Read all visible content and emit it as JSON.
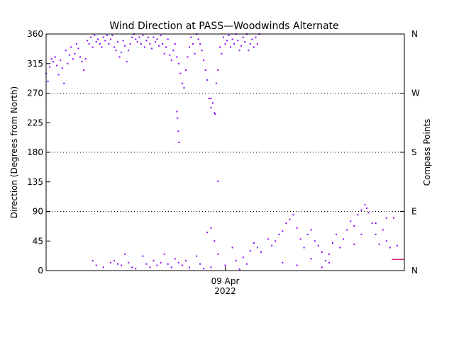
{
  "chart_data": {
    "type": "scatter",
    "title": "Wind Direction at PASS—Woodwinds Alternate",
    "ylabel": "Direction (Degrees from North)",
    "ylabel_right": "Compass Points",
    "xlabel": "",
    "ylim": [
      0,
      360
    ],
    "yticks": [
      0,
      45,
      90,
      135,
      180,
      225,
      270,
      315,
      360
    ],
    "right_ticks": [
      {
        "value": 0,
        "label": "N"
      },
      {
        "value": 90,
        "label": "E"
      },
      {
        "value": 180,
        "label": "S"
      },
      {
        "value": 270,
        "label": "W"
      },
      {
        "value": 360,
        "label": "N"
      }
    ],
    "gridlines_y": [
      90,
      180,
      270
    ],
    "xlim": [
      0,
      1
    ],
    "xtick": {
      "x": 0.5,
      "label_line1": "09 Apr",
      "label_line2": "2022"
    },
    "marker_color": "#8800ff",
    "segment_color": "#cc0066",
    "series": [
      {
        "points": [
          [
            0.0,
            300
          ],
          [
            0.005,
            288
          ],
          [
            0.01,
            310
          ],
          [
            0.015,
            322
          ],
          [
            0.02,
            318
          ],
          [
            0.025,
            325
          ],
          [
            0.03,
            312
          ],
          [
            0.035,
            298
          ],
          [
            0.04,
            320
          ],
          [
            0.045,
            308
          ],
          [
            0.05,
            285
          ],
          [
            0.055,
            335
          ],
          [
            0.06,
            315
          ],
          [
            0.065,
            328
          ],
          [
            0.07,
            340
          ],
          [
            0.075,
            322
          ],
          [
            0.08,
            330
          ],
          [
            0.085,
            345
          ],
          [
            0.09,
            338
          ],
          [
            0.095,
            325
          ],
          [
            0.1,
            318
          ],
          [
            0.105,
            305
          ],
          [
            0.11,
            322
          ],
          [
            0.115,
            350
          ],
          [
            0.12,
            345
          ],
          [
            0.125,
            355
          ],
          [
            0.13,
            340
          ],
          [
            0.135,
            358
          ],
          [
            0.14,
            348
          ],
          [
            0.145,
            352
          ],
          [
            0.15,
            345
          ],
          [
            0.155,
            340
          ],
          [
            0.16,
            355
          ],
          [
            0.165,
            350
          ],
          [
            0.17,
            358
          ],
          [
            0.175,
            345
          ],
          [
            0.18,
            352
          ],
          [
            0.185,
            358
          ],
          [
            0.19,
            340
          ],
          [
            0.195,
            335
          ],
          [
            0.2,
            348
          ],
          [
            0.205,
            325
          ],
          [
            0.21,
            332
          ],
          [
            0.215,
            350
          ],
          [
            0.22,
            342
          ],
          [
            0.225,
            318
          ],
          [
            0.23,
            335
          ],
          [
            0.235,
            345
          ],
          [
            0.24,
            355
          ],
          [
            0.245,
            360
          ],
          [
            0.25,
            352
          ],
          [
            0.255,
            348
          ],
          [
            0.26,
            355
          ],
          [
            0.265,
            345
          ],
          [
            0.27,
            358
          ],
          [
            0.275,
            340
          ],
          [
            0.28,
            350
          ],
          [
            0.285,
            355
          ],
          [
            0.29,
            345
          ],
          [
            0.295,
            338
          ],
          [
            0.3,
            355
          ],
          [
            0.305,
            348
          ],
          [
            0.31,
            352
          ],
          [
            0.315,
            342
          ],
          [
            0.32,
            358
          ],
          [
            0.325,
            345
          ],
          [
            0.33,
            330
          ],
          [
            0.335,
            340
          ],
          [
            0.34,
            352
          ],
          [
            0.345,
            328
          ],
          [
            0.35,
            320
          ],
          [
            0.355,
            335
          ],
          [
            0.36,
            345
          ],
          [
            0.365,
            325
          ],
          [
            0.37,
            315
          ],
          [
            0.375,
            300
          ],
          [
            0.38,
            285
          ],
          [
            0.385,
            278
          ],
          [
            0.39,
            305
          ],
          [
            0.395,
            325
          ],
          [
            0.4,
            340
          ],
          [
            0.405,
            355
          ],
          [
            0.41,
            345
          ],
          [
            0.415,
            330
          ],
          [
            0.42,
            360
          ],
          [
            0.425,
            352
          ],
          [
            0.43,
            345
          ],
          [
            0.435,
            335
          ],
          [
            0.44,
            320
          ],
          [
            0.445,
            305
          ],
          [
            0.45,
            290
          ],
          [
            0.455,
            262
          ],
          [
            0.46,
            248
          ],
          [
            0.465,
            255
          ],
          [
            0.47,
            240
          ],
          [
            0.475,
            285
          ],
          [
            0.48,
            305
          ],
          [
            0.485,
            340
          ],
          [
            0.49,
            330
          ],
          [
            0.495,
            355
          ],
          [
            0.5,
            345
          ],
          [
            0.505,
            350
          ],
          [
            0.51,
            358
          ],
          [
            0.515,
            340
          ],
          [
            0.52,
            352
          ],
          [
            0.525,
            345
          ],
          [
            0.53,
            360
          ],
          [
            0.535,
            350
          ],
          [
            0.54,
            335
          ],
          [
            0.545,
            342
          ],
          [
            0.55,
            355
          ],
          [
            0.555,
            348
          ],
          [
            0.56,
            360
          ],
          [
            0.565,
            335
          ],
          [
            0.57,
            345
          ],
          [
            0.575,
            352
          ],
          [
            0.58,
            340
          ],
          [
            0.585,
            355
          ],
          [
            0.59,
            345
          ],
          [
            0.595,
            360
          ],
          [
            0.365,
            242
          ],
          [
            0.367,
            232
          ],
          [
            0.369,
            212
          ],
          [
            0.371,
            195
          ],
          [
            0.46,
            262
          ],
          [
            0.472,
            238
          ],
          [
            0.48,
            136
          ],
          [
            0.13,
            15
          ],
          [
            0.14,
            8
          ],
          [
            0.16,
            5
          ],
          [
            0.18,
            12
          ],
          [
            0.19,
            15
          ],
          [
            0.2,
            10
          ],
          [
            0.21,
            8
          ],
          [
            0.22,
            25
          ],
          [
            0.23,
            12
          ],
          [
            0.24,
            5
          ],
          [
            0.25,
            3
          ],
          [
            0.27,
            22
          ],
          [
            0.28,
            10
          ],
          [
            0.29,
            5
          ],
          [
            0.3,
            15
          ],
          [
            0.31,
            8
          ],
          [
            0.32,
            12
          ],
          [
            0.33,
            25
          ],
          [
            0.34,
            10
          ],
          [
            0.35,
            5
          ],
          [
            0.36,
            18
          ],
          [
            0.37,
            12
          ],
          [
            0.38,
            8
          ],
          [
            0.39,
            15
          ],
          [
            0.4,
            5
          ],
          [
            0.42,
            22
          ],
          [
            0.43,
            10
          ],
          [
            0.45,
            58
          ],
          [
            0.46,
            65
          ],
          [
            0.47,
            45
          ],
          [
            0.48,
            25
          ],
          [
            0.5,
            8
          ],
          [
            0.52,
            35
          ],
          [
            0.53,
            15
          ],
          [
            0.55,
            20
          ],
          [
            0.57,
            30
          ],
          [
            0.58,
            42
          ],
          [
            0.59,
            35
          ],
          [
            0.6,
            28
          ],
          [
            0.62,
            48
          ],
          [
            0.63,
            38
          ],
          [
            0.64,
            45
          ],
          [
            0.65,
            55
          ],
          [
            0.66,
            60
          ],
          [
            0.67,
            72
          ],
          [
            0.68,
            78
          ],
          [
            0.69,
            85
          ],
          [
            0.7,
            65
          ],
          [
            0.71,
            48
          ],
          [
            0.72,
            35
          ],
          [
            0.73,
            55
          ],
          [
            0.74,
            62
          ],
          [
            0.75,
            45
          ],
          [
            0.76,
            38
          ],
          [
            0.77,
            28
          ],
          [
            0.78,
            15
          ],
          [
            0.79,
            25
          ],
          [
            0.8,
            42
          ],
          [
            0.81,
            55
          ],
          [
            0.82,
            35
          ],
          [
            0.83,
            48
          ],
          [
            0.84,
            62
          ],
          [
            0.85,
            75
          ],
          [
            0.86,
            68
          ],
          [
            0.87,
            85
          ],
          [
            0.88,
            92
          ],
          [
            0.89,
            100
          ],
          [
            0.895,
            95
          ],
          [
            0.9,
            88
          ],
          [
            0.91,
            72
          ],
          [
            0.92,
            55
          ],
          [
            0.93,
            40
          ],
          [
            0.94,
            62
          ],
          [
            0.95,
            45
          ],
          [
            0.96,
            35
          ],
          [
            0.44,
            3
          ],
          [
            0.46,
            5
          ],
          [
            0.54,
            2
          ],
          [
            0.56,
            10
          ],
          [
            0.66,
            12
          ],
          [
            0.7,
            8
          ],
          [
            0.74,
            18
          ],
          [
            0.77,
            5
          ],
          [
            0.79,
            12
          ],
          [
            0.86,
            40
          ],
          [
            0.88,
            55
          ],
          [
            0.92,
            72
          ],
          [
            0.95,
            80
          ],
          [
            0.97,
            80
          ],
          [
            0.98,
            38
          ]
        ]
      }
    ],
    "segment": {
      "x": [
        0.965,
        1.0
      ],
      "y": 17
    }
  }
}
